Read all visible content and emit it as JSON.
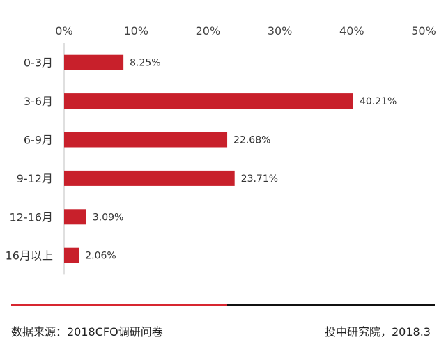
{
  "chart_data": {
    "type": "bar",
    "orientation": "horizontal",
    "categories": [
      "0-3月",
      "3-6月",
      "6-9月",
      "9-12月",
      "12-16月",
      "16月以上"
    ],
    "values": [
      8.25,
      40.21,
      22.68,
      23.71,
      3.09,
      2.06
    ],
    "data_labels": [
      "8.25%",
      "40.21%",
      "22.68%",
      "23.71%",
      "3.09%",
      "2.06%"
    ],
    "x_ticks": [
      "0%",
      "10%",
      "20%",
      "30%",
      "40%",
      "50%"
    ],
    "xlim": [
      0,
      50
    ],
    "x_axis_position": "top",
    "grid": false,
    "legend": "none",
    "bar_color": "#c8202b"
  },
  "footer": {
    "source": "数据来源：2018CFO调研问卷",
    "credit": "投中研究院，2018.3",
    "accent_color": "#d72630",
    "line_color": "#111111"
  }
}
